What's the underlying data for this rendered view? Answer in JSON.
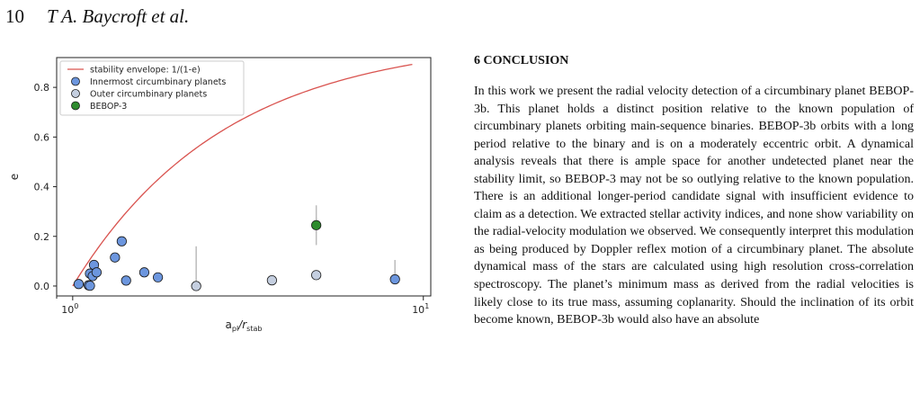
{
  "header": {
    "page_number": "10",
    "authors": "T A. Baycroft et al."
  },
  "section": {
    "heading": "6 CONCLUSION"
  },
  "conclusion_text": "In this work we present the radial velocity detection of a circumbinary planet BEBOP-3b. This planet holds a distinct position relative to the known population of circumbinary planets orbiting main-sequence binaries. BEBOP-3b orbits with a long period relative to the binary and is on a moderately eccentric orbit. A dynamical analysis reveals that there is ample space for another undetected planet near the stability limit, so BEBOP-3 may not be so outlying relative to the known population. There is an additional longer-period candidate signal with insufficient evidence to claim as a detection. We extracted stellar activity indices, and none show variability on the radial-velocity modulation we observed. We consequently interpret this modulation as being produced by Doppler reflex motion of a circumbinary planet. The absolute dynamical mass of the stars are calculated using high resolution cross-correlation spectroscopy. The planet’s minimum mass as derived from the radial velocities is likely close to its true mass, assuming coplanarity. Should the inclination of its orbit become known, BEBOP-3b would also have an absolute",
  "chart_data": {
    "type": "scatter",
    "xscale": "log",
    "xlim": [
      0.9,
      10.5
    ],
    "ylim": [
      -0.04,
      0.92
    ],
    "xticks": [
      {
        "value": 1,
        "base": "10",
        "exp": "0"
      },
      {
        "value": 10,
        "base": "10",
        "exp": "1"
      }
    ],
    "yticks": [
      0.0,
      0.2,
      0.4,
      0.6,
      0.8
    ],
    "xlabel": {
      "main": "a",
      "sub1": "pl",
      "mid": "/r",
      "sub2": "stab"
    },
    "ylabel": "e",
    "legend_position": "top-left",
    "legend": [
      {
        "label": "stability envelope: 1/(1-e)",
        "kind": "line",
        "color": "#d9534f"
      },
      {
        "label": "Innermost circumbinary planets",
        "kind": "marker",
        "color": "#6c96de"
      },
      {
        "label": "Outer circumbinary planets",
        "kind": "marker",
        "color": "#c5cfe0"
      },
      {
        "label": "BEBOP-3",
        "kind": "marker",
        "color": "#2e8b2e"
      }
    ],
    "envelope": {
      "color": "#d9534f",
      "x_end": 9.3
    },
    "series": [
      {
        "name": "Innermost circumbinary planets",
        "color": "#6c96de",
        "points": [
          [
            1.04,
            0.008
          ],
          [
            1.11,
            0.003
          ],
          [
            1.12,
            0.001
          ],
          [
            1.12,
            0.05
          ],
          [
            1.14,
            0.04
          ],
          [
            1.15,
            0.085
          ],
          [
            1.17,
            0.055
          ],
          [
            1.32,
            0.115
          ],
          [
            1.38,
            0.18
          ],
          [
            1.42,
            0.022
          ],
          [
            1.6,
            0.055
          ],
          [
            1.75,
            0.035
          ],
          [
            8.3,
            0.027
          ]
        ]
      },
      {
        "name": "Outer circumbinary planets",
        "color": "#c5cfe0",
        "points": [
          [
            2.25,
            0.0
          ],
          [
            3.7,
            0.023
          ],
          [
            4.95,
            0.044
          ]
        ]
      },
      {
        "name": "BEBOP-3",
        "color": "#2e8b2e",
        "points": [
          [
            4.95,
            0.245
          ]
        ]
      }
    ],
    "error_bars": [
      {
        "x": 2.25,
        "ylo": 0.0,
        "yhi": 0.16
      },
      {
        "x": 4.95,
        "ylo": 0.165,
        "yhi": 0.325
      },
      {
        "x": 8.3,
        "ylo": 0.027,
        "yhi": 0.105
      }
    ]
  }
}
